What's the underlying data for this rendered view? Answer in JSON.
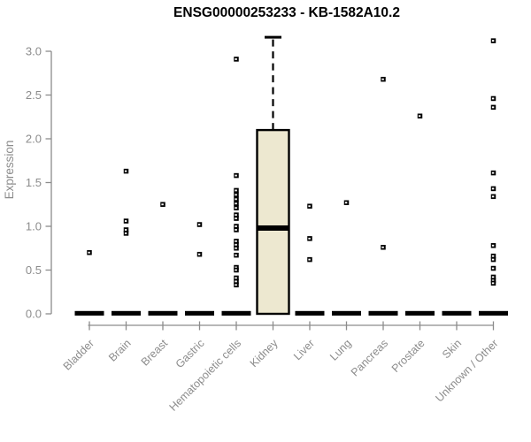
{
  "title": "ENSG00000253233 - KB-1582A10.2",
  "chart_data": {
    "type": "boxplot",
    "title": "ENSG00000253233 - KB-1582A10.2",
    "xlabel": "",
    "ylabel": "Expression",
    "ylim": [
      0,
      3.2
    ],
    "yticks": [
      "0.0",
      "0.5",
      "1.0",
      "1.5",
      "2.0",
      "2.5",
      "3.0"
    ],
    "grid": false,
    "legend": false,
    "categories": [
      "Bladder",
      "Brain",
      "Breast",
      "Gastric",
      "Hematopoietic cells",
      "Kidney",
      "Liver",
      "Lung",
      "Pancreas",
      "Prostate",
      "Skin",
      "Unknown / Other"
    ],
    "zero_bar": {
      "description": "flat black bar (collapsed box, median 0) drawn at expression 0 for every category",
      "value": 0
    },
    "points_by_category": {
      "Bladder": [
        0.7
      ],
      "Brain": [
        1.63,
        1.06,
        0.96,
        0.92
      ],
      "Breast": [
        1.25
      ],
      "Gastric": [
        1.02,
        0.68
      ],
      "Hematopoietic cells": [
        2.91,
        1.58,
        1.41,
        1.36,
        1.31,
        1.26,
        1.21,
        1.13,
        1.09,
        1.0,
        0.96,
        0.83,
        0.79,
        0.75,
        0.67,
        0.53,
        0.5,
        0.41,
        0.37,
        0.33
      ],
      "Kidney": [],
      "Liver": [
        1.23,
        0.86,
        0.62
      ],
      "Lung": [
        1.27
      ],
      "Pancreas": [
        2.68,
        0.76
      ],
      "Prostate": [
        2.26
      ],
      "Skin": [],
      "Unknown / Other": [
        3.12,
        2.46,
        2.36,
        1.61,
        1.43,
        1.34,
        0.78,
        0.66,
        0.62,
        0.52,
        0.42,
        0.38,
        0.35
      ]
    },
    "boxplots": [
      {
        "category": "Kidney",
        "q1": 0.0,
        "median": 0.98,
        "q3": 2.1,
        "whisker_high": 3.16,
        "whisker_low": 0.0
      }
    ],
    "colors": {
      "box_fill": "#EDE8D0",
      "box_border": "#000000",
      "point": "#000000",
      "axis": "#8C8C8C",
      "tick_label": "#8C8C8C",
      "title": "#000000",
      "background": "#FFFFFF"
    }
  }
}
